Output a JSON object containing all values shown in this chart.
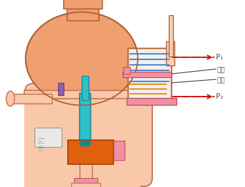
{
  "bg_color": "#ffffff",
  "body_fill": "#f0a070",
  "body_stroke": "#b06030",
  "body_fill_light": "#f8c8a8",
  "lower_body_fill": "#f8c8a8",
  "lower_body_stroke": "#c07050",
  "top_cap_fill": "#f0a070",
  "top_cap_stroke": "#b06030",
  "neck_fill": "#f0a070",
  "neck_stroke": "#b06030",
  "cyl_fill": "#f8d0b8",
  "cyl_stroke": "#b06030",
  "cyl_inner_fill": "#ffffff",
  "blue_line_color": "#5588cc",
  "orange_line_color": "#e89020",
  "pink_fill": "#f090a0",
  "pink_stroke": "#c05060",
  "purple_fill": "#9060b0",
  "purple_stroke": "#604080",
  "stem_fill": "#30c0c8",
  "stem_stroke": "#108898",
  "orange_block_fill": "#e06010",
  "orange_block_stroke": "#a04008",
  "arrow_color": "#cc1010",
  "line_color": "#404040",
  "text_color": "#505050",
  "gauge_fill": "#e8e8e8",
  "gauge_stroke": "#909090",
  "label_P1": "P₁",
  "label_P2": "P₂",
  "label_huosai": "活塞",
  "label_qigang": "气缸"
}
